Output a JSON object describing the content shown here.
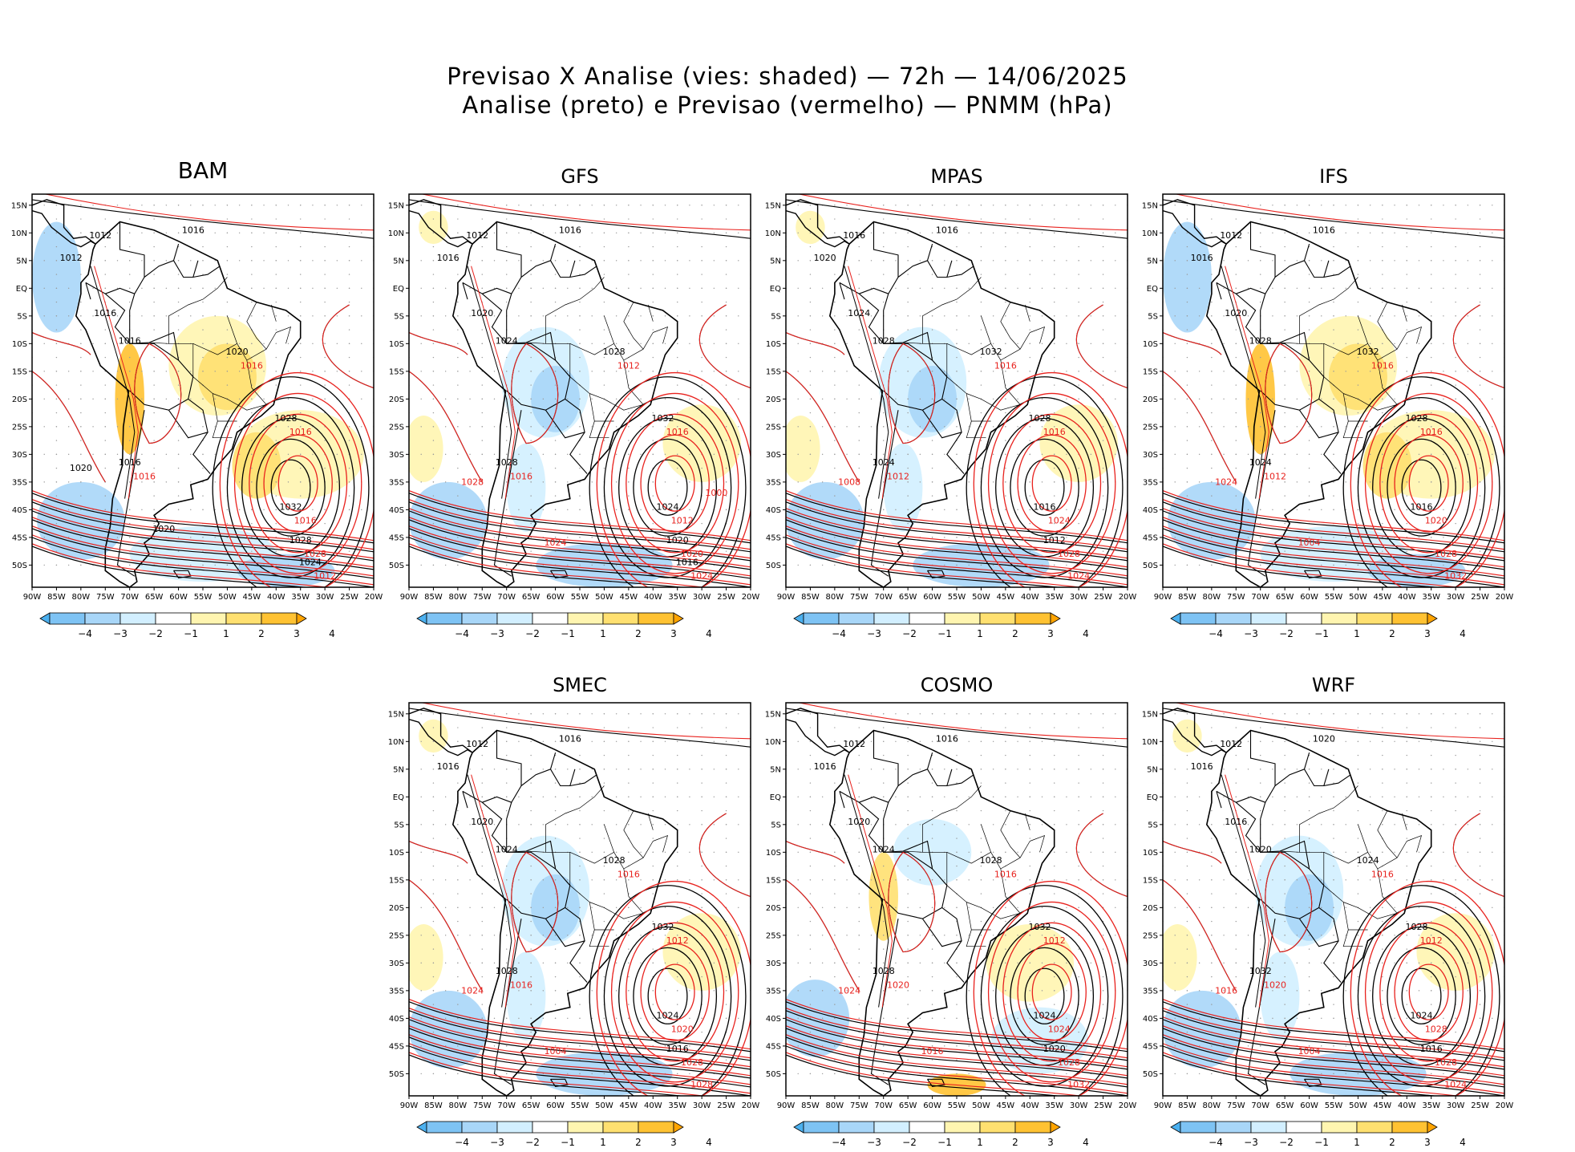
{
  "header": {
    "title_line1": "Previsao X Analise (vies: shaded) — 72h — 14/06/2025",
    "title_line2": "Analise (preto) e Previsao (vermelho) — PNMM (hPa)"
  },
  "axes": {
    "lon_labels": [
      "90W",
      "85W",
      "80W",
      "75W",
      "70W",
      "65W",
      "60W",
      "55W",
      "50W",
      "45W",
      "40W",
      "35W",
      "30W",
      "25W",
      "20W"
    ],
    "lat_labels": [
      "15N",
      "10N",
      "5N",
      "EQ",
      "5S",
      "10S",
      "15S",
      "20S",
      "25S",
      "30S",
      "35S",
      "40S",
      "45S",
      "50S"
    ]
  },
  "colorbar": {
    "ticks": [
      "-4",
      "-3",
      "-2",
      "-1",
      "1",
      "2",
      "3",
      "4"
    ],
    "colors": [
      "#4bb0ef",
      "#7ec3f4",
      "#a8d6f8",
      "#d2efff",
      "#ffffff",
      "#fff5b0",
      "#ffe070",
      "#ffc232",
      "#ffa400"
    ]
  },
  "colors": {
    "analysis": "#000000",
    "forecast": "#e8221e",
    "coast": "#000000"
  },
  "panels": [
    {
      "model": "BAM",
      "bias": "pos",
      "labels_black": [
        "1016",
        "1012",
        "1012",
        "1016",
        "1016",
        "1020",
        "1028",
        "1016",
        "1032",
        "1028",
        "1024",
        "1020",
        "1020"
      ],
      "labels_red": [
        "1016",
        "1016",
        "1016",
        "1016",
        "1028",
        "1012"
      ]
    },
    {
      "model": "GFS",
      "bias": "neg",
      "labels_black": [
        "1016",
        "1012",
        "1016",
        "1020",
        "1024",
        "1028",
        "1032",
        "1028",
        "1024",
        "1020",
        "1016"
      ],
      "labels_red": [
        "1012",
        "1016",
        "1016",
        "1012",
        "1020",
        "1024",
        "1028",
        "1024",
        "1000"
      ]
    },
    {
      "model": "MPAS",
      "bias": "neg",
      "labels_black": [
        "1016",
        "1016",
        "1020",
        "1024",
        "1028",
        "1032",
        "1028",
        "1024",
        "1016",
        "1012"
      ],
      "labels_red": [
        "1016",
        "1016",
        "1012",
        "1024",
        "1028",
        "1024",
        "1008"
      ]
    },
    {
      "model": "IFS",
      "bias": "pos",
      "labels_black": [
        "1016",
        "1012",
        "1016",
        "1020",
        "1028",
        "1032",
        "1028",
        "1024",
        "1016"
      ],
      "labels_red": [
        "1016",
        "1016",
        "1012",
        "1020",
        "1028",
        "1032",
        "1024",
        "1004"
      ]
    },
    {
      "model": "SMEC",
      "bias": "neg",
      "labels_black": [
        "1016",
        "1012",
        "1016",
        "1020",
        "1024",
        "1028",
        "1032",
        "1028",
        "1024",
        "1016"
      ],
      "labels_red": [
        "1016",
        "1012",
        "1016",
        "1020",
        "1028",
        "1028",
        "1024",
        "1004"
      ]
    },
    {
      "model": "COSMO",
      "bias": "mix",
      "labels_black": [
        "1016",
        "1012",
        "1016",
        "1020",
        "1024",
        "1028",
        "1032",
        "1028",
        "1024",
        "1020"
      ],
      "labels_red": [
        "1016",
        "1012",
        "1020",
        "1024",
        "1028",
        "1032",
        "1024",
        "1016"
      ]
    },
    {
      "model": "WRF",
      "bias": "neg",
      "labels_black": [
        "1020",
        "1012",
        "1016",
        "1016",
        "1020",
        "1024",
        "1028",
        "1032",
        "1024",
        "1016"
      ],
      "labels_red": [
        "1016",
        "1012",
        "1020",
        "1028",
        "1028",
        "1024",
        "1016",
        "1004"
      ]
    }
  ]
}
